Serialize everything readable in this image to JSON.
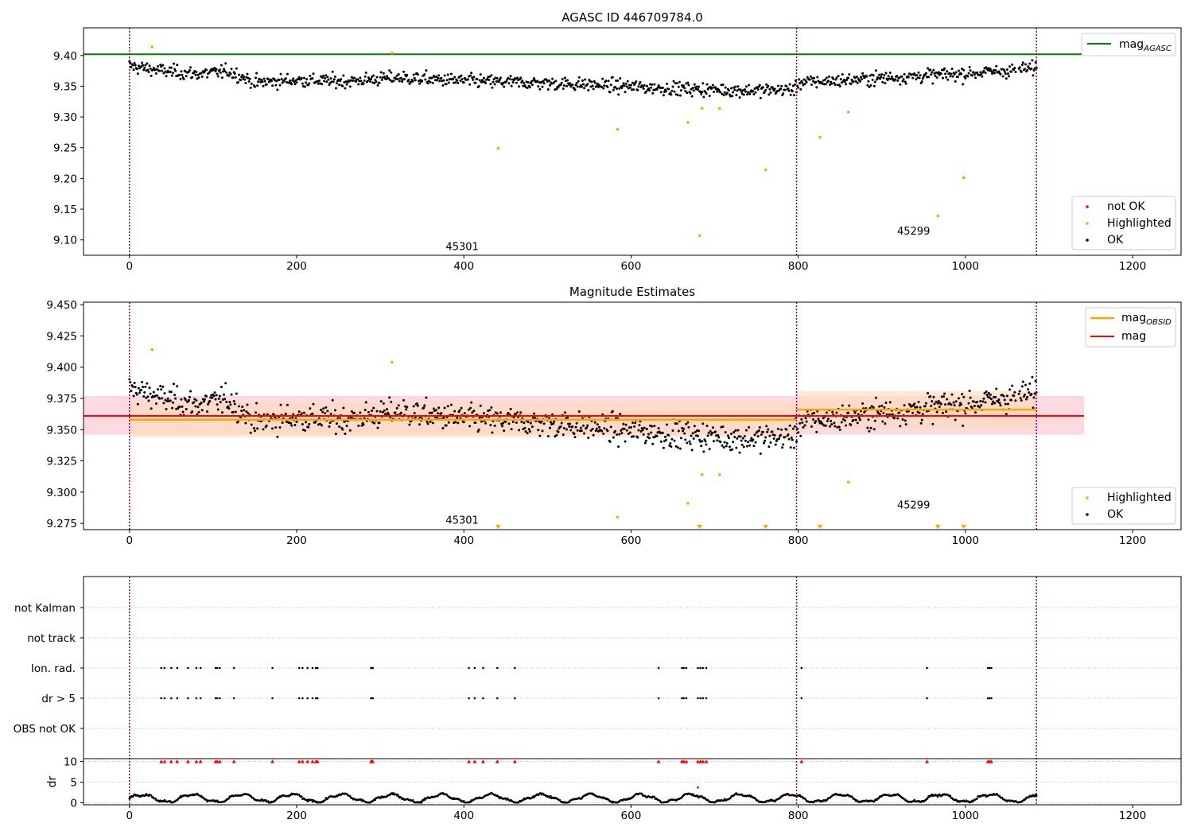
{
  "figure": {
    "colors": {
      "ok": "#000000",
      "highlighted": "#ffa500",
      "not_ok": "#ff0000",
      "agasc_line": "#008000",
      "mag_line": "#ff0000",
      "obsid_line": "#ffa500",
      "obs_boundary": "#800080",
      "mag_band": "#ffc0cb",
      "obsid_band": "#ffdab9"
    }
  },
  "chart_data": [
    {
      "type": "scatter",
      "title": "AGASC ID 446709784.0",
      "xlabel": "",
      "ylabel": "",
      "xlim": [
        -55,
        1258
      ],
      "ylim": [
        9.075,
        9.445
      ],
      "xticks": [
        0,
        200,
        400,
        600,
        800,
        1000,
        1200
      ],
      "yticks": [
        9.1,
        9.15,
        9.2,
        9.25,
        9.3,
        9.35,
        9.4
      ],
      "ytick_labels": [
        "9.10",
        "9.15",
        "9.20",
        "9.25",
        "9.30",
        "9.35",
        "9.40"
      ],
      "grid": false,
      "mag_agasc": 9.402,
      "obs_boundaries": [
        0,
        798,
        1085
      ],
      "obsid_labels": [
        {
          "text": "45301",
          "x": 398,
          "y": 9.09
        },
        {
          "text": "45299",
          "x": 938,
          "y": 9.115
        }
      ],
      "legends": [
        {
          "placement": "upper right",
          "entries": [
            {
              "label": "mag",
              "subscript": "AGASC",
              "kind": "line",
              "color": "#008000"
            }
          ]
        },
        {
          "placement": "lower right",
          "entries": [
            {
              "label": "not OK",
              "kind": "dot",
              "color": "#ff0000"
            },
            {
              "label": "Highlighted",
              "kind": "dot",
              "color": "#ffa500"
            },
            {
              "label": "OK",
              "kind": "dot",
              "color": "#000000"
            }
          ]
        }
      ],
      "ok_trend": {
        "x": [
          0,
          40,
          80,
          120,
          150,
          200,
          260,
          320,
          380,
          440,
          500,
          560,
          620,
          680,
          740,
          797,
          800,
          860,
          920,
          980,
          1040,
          1085
        ],
        "y": [
          9.383,
          9.375,
          9.37,
          9.374,
          9.356,
          9.36,
          9.358,
          9.364,
          9.36,
          9.357,
          9.355,
          9.352,
          9.348,
          9.345,
          9.343,
          9.345,
          9.356,
          9.36,
          9.365,
          9.369,
          9.374,
          9.38
        ],
        "sigma": 0.011
      },
      "highlighted": {
        "x": [
          27,
          314,
          441,
          584,
          668,
          682,
          685,
          706,
          761,
          826,
          860,
          967,
          998
        ],
        "y": [
          9.414,
          9.404,
          9.249,
          9.28,
          9.291,
          9.107,
          9.314,
          9.314,
          9.214,
          9.267,
          9.308,
          9.139,
          9.201
        ]
      }
    },
    {
      "type": "scatter",
      "title": "Magnitude Estimates",
      "xlabel": "",
      "ylabel": "",
      "xlim": [
        -55,
        1258
      ],
      "ylim": [
        9.27,
        9.452
      ],
      "xticks": [
        0,
        200,
        400,
        600,
        800,
        1000,
        1200
      ],
      "yticks": [
        9.275,
        9.3,
        9.325,
        9.35,
        9.375,
        9.4,
        9.425,
        9.45
      ],
      "ytick_labels": [
        "9.275",
        "9.300",
        "9.325",
        "9.350",
        "9.375",
        "9.400",
        "9.425",
        "9.450"
      ],
      "grid": false,
      "mag": 9.361,
      "mag_band": [
        9.346,
        9.377
      ],
      "mag_band_x": [
        -55,
        1142
      ],
      "obsid_means": [
        {
          "x": [
            0,
            798
          ],
          "mag": 9.358,
          "band": [
            9.344,
            9.372
          ]
        },
        {
          "x": [
            798,
            1085
          ],
          "mag": 9.366,
          "band": [
            9.351,
            9.381
          ]
        }
      ],
      "obs_boundaries": [
        0,
        798,
        1085
      ],
      "obsid_labels": [
        {
          "text": "45301",
          "x": 398,
          "y": 9.278
        },
        {
          "text": "45299",
          "x": 938,
          "y": 9.29
        }
      ],
      "legends": [
        {
          "placement": "upper right",
          "entries": [
            {
              "label": "mag",
              "subscript": "OBSID",
              "kind": "line",
              "color": "#ffa500"
            },
            {
              "label": "mag",
              "subscript": "",
              "kind": "line",
              "color": "#ff0000"
            }
          ]
        },
        {
          "placement": "lower right",
          "entries": [
            {
              "label": "Highlighted",
              "kind": "dot",
              "color": "#ffa500"
            },
            {
              "label": "OK",
              "kind": "dot",
              "color": "#000000"
            }
          ]
        }
      ],
      "highlighted": {
        "x": [
          27,
          314,
          584,
          668,
          685,
          706,
          860
        ],
        "y": [
          9.414,
          9.404,
          9.28,
          9.291,
          9.314,
          9.314,
          9.308
        ]
      },
      "below_axis_markers": {
        "x": [
          441,
          682,
          761,
          826,
          967,
          998
        ]
      }
    },
    {
      "type": "scatter",
      "title": "",
      "xlabel": "",
      "ylabel": "",
      "xlim": [
        -55,
        1258
      ],
      "obs_boundaries": [
        0,
        798,
        1085
      ],
      "flag_rows": [
        "not Kalman",
        "not track",
        "Ion. rad.",
        "dr > 5",
        "OBS not OK"
      ],
      "flag_events": {
        "Ion. rad.": [
          38,
          42,
          50,
          57,
          70,
          80,
          85,
          103,
          105,
          108,
          125,
          171,
          203,
          207,
          213,
          219,
          223,
          225,
          289,
          290,
          291,
          406,
          413,
          423,
          440,
          461,
          633,
          661,
          663,
          666,
          680,
          683,
          686,
          690,
          804,
          954,
          1027,
          1029,
          1031
        ],
        "dr > 5": [
          38,
          42,
          50,
          57,
          70,
          80,
          85,
          103,
          105,
          108,
          125,
          171,
          203,
          207,
          213,
          219,
          223,
          225,
          289,
          290,
          291,
          406,
          413,
          423,
          440,
          461,
          633,
          661,
          663,
          666,
          680,
          683,
          686,
          690,
          804,
          954,
          1027,
          1029,
          1031
        ]
      },
      "dr": {
        "ylabel": "dr",
        "ylim": [
          -0.5,
          10.5
        ],
        "yticks": [
          0,
          5,
          10
        ],
        "clip_value": 10,
        "clipped_x": [
          38,
          42,
          50,
          57,
          70,
          80,
          85,
          103,
          105,
          108,
          125,
          171,
          203,
          207,
          213,
          219,
          223,
          225,
          289,
          290,
          291,
          406,
          413,
          423,
          440,
          461,
          633,
          661,
          663,
          666,
          680,
          683,
          686,
          690,
          804,
          954,
          1027,
          1029,
          1031
        ],
        "isolated": [
          {
            "x": 680,
            "y": 3.7
          }
        ],
        "typical_range": [
          0,
          2.6
        ]
      }
    }
  ]
}
